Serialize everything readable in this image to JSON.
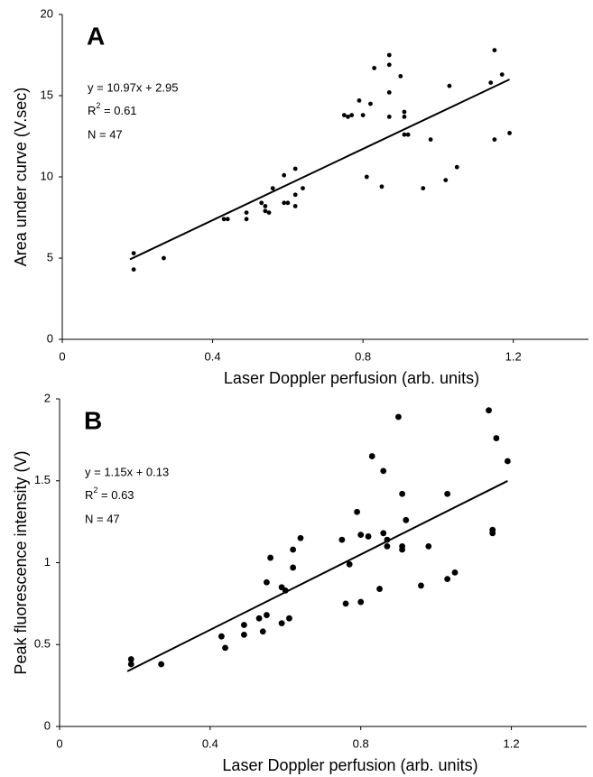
{
  "chart_data": [
    {
      "type": "scatter",
      "panel_label": "A",
      "xlabel": "Laser Doppler perfusion (arb. units)",
      "ylabel": "Area under curve (V.sec)",
      "xlim": [
        0,
        1.4
      ],
      "xticks": [
        0,
        0.4,
        0.8,
        1.2
      ],
      "ylim": [
        0,
        20
      ],
      "yticks": [
        0,
        5,
        10,
        15,
        20
      ],
      "equation": "y = 10.97x + 2.95",
      "r2": {
        "base": "R",
        "sup": "2",
        "tail": " = 0.61"
      },
      "n_label": "N = 47",
      "trendline": {
        "x": [
          0.18,
          1.19
        ],
        "y": [
          4.92,
          16.0
        ]
      },
      "color": "#000000",
      "series": [
        {
          "name": "A",
          "color": "#000000",
          "x": [
            0.19,
            0.19,
            0.27,
            0.43,
            0.44,
            0.49,
            0.49,
            0.53,
            0.54,
            0.54,
            0.55,
            0.56,
            0.59,
            0.59,
            0.6,
            0.62,
            0.62,
            0.62,
            0.64,
            0.75,
            0.76,
            0.77,
            0.79,
            0.8,
            0.81,
            0.82,
            0.83,
            0.85,
            0.87,
            0.87,
            0.87,
            0.87,
            0.9,
            0.91,
            0.91,
            0.91,
            0.92,
            0.96,
            0.98,
            1.02,
            1.03,
            1.05,
            1.14,
            1.15,
            1.15,
            1.17,
            1.19
          ],
          "values": [
            5.3,
            4.3,
            5.0,
            7.4,
            7.4,
            7.4,
            7.8,
            8.4,
            8.2,
            7.9,
            7.8,
            9.3,
            8.4,
            10.1,
            8.4,
            8.2,
            8.9,
            10.5,
            9.3,
            13.8,
            13.7,
            13.8,
            14.7,
            13.8,
            10.0,
            14.5,
            16.7,
            9.4,
            17.5,
            16.9,
            15.2,
            13.7,
            16.2,
            12.6,
            14.0,
            13.7,
            12.6,
            9.3,
            12.3,
            9.8,
            15.6,
            10.6,
            15.8,
            17.8,
            12.3,
            16.3,
            12.7
          ]
        }
      ]
    },
    {
      "type": "scatter",
      "panel_label": "B",
      "xlabel": "Laser Doppler perfusion (arb. units)",
      "ylabel": "Peak fluorescence intensity (V)",
      "xlim": [
        0,
        1.4
      ],
      "xticks": [
        0,
        0.4,
        0.8,
        1.2
      ],
      "ylim": [
        0,
        2
      ],
      "yticks": [
        0,
        0.5,
        1,
        1.5,
        2
      ],
      "equation": "y = 1.15x + 0.13",
      "r2": {
        "base": "R",
        "sup": "2",
        "tail": " = 0.63"
      },
      "n_label": "N = 47",
      "trendline": {
        "x": [
          0.18,
          1.19
        ],
        "y": [
          0.337,
          1.499
        ]
      },
      "color": "#000000",
      "series": [
        {
          "name": "B",
          "color": "#000000",
          "x": [
            0.19,
            0.19,
            0.27,
            0.43,
            0.44,
            0.49,
            0.49,
            0.53,
            0.54,
            0.55,
            0.55,
            0.56,
            0.59,
            0.59,
            0.6,
            0.61,
            0.62,
            0.62,
            0.64,
            0.75,
            0.76,
            0.77,
            0.79,
            0.8,
            0.8,
            0.82,
            0.83,
            0.85,
            0.86,
            0.86,
            0.87,
            0.87,
            0.9,
            0.91,
            0.91,
            0.91,
            0.92,
            0.96,
            0.98,
            1.03,
            1.03,
            1.05,
            1.14,
            1.15,
            1.15,
            1.16,
            1.19
          ],
          "values": [
            0.41,
            0.38,
            0.38,
            0.55,
            0.48,
            0.62,
            0.56,
            0.66,
            0.58,
            0.68,
            0.88,
            1.03,
            0.85,
            0.63,
            0.83,
            0.66,
            1.08,
            0.97,
            1.15,
            1.14,
            0.75,
            0.99,
            1.31,
            1.17,
            0.76,
            1.16,
            1.65,
            0.84,
            1.56,
            1.18,
            1.14,
            1.1,
            1.89,
            1.1,
            1.42,
            1.08,
            1.26,
            0.86,
            1.1,
            0.9,
            1.42,
            0.94,
            1.93,
            1.18,
            1.2,
            1.76,
            1.62
          ]
        }
      ]
    }
  ]
}
